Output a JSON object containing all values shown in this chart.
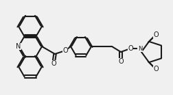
{
  "bg_color": "#f0f0f0",
  "line_color": "#1a1a1a",
  "line_width": 1.5,
  "font_size": 7,
  "n_label": "N",
  "o_labels": [
    "O",
    "O",
    "O",
    "O",
    "O",
    "O"
  ],
  "figsize": [
    2.53,
    1.39
  ],
  "dpi": 100
}
